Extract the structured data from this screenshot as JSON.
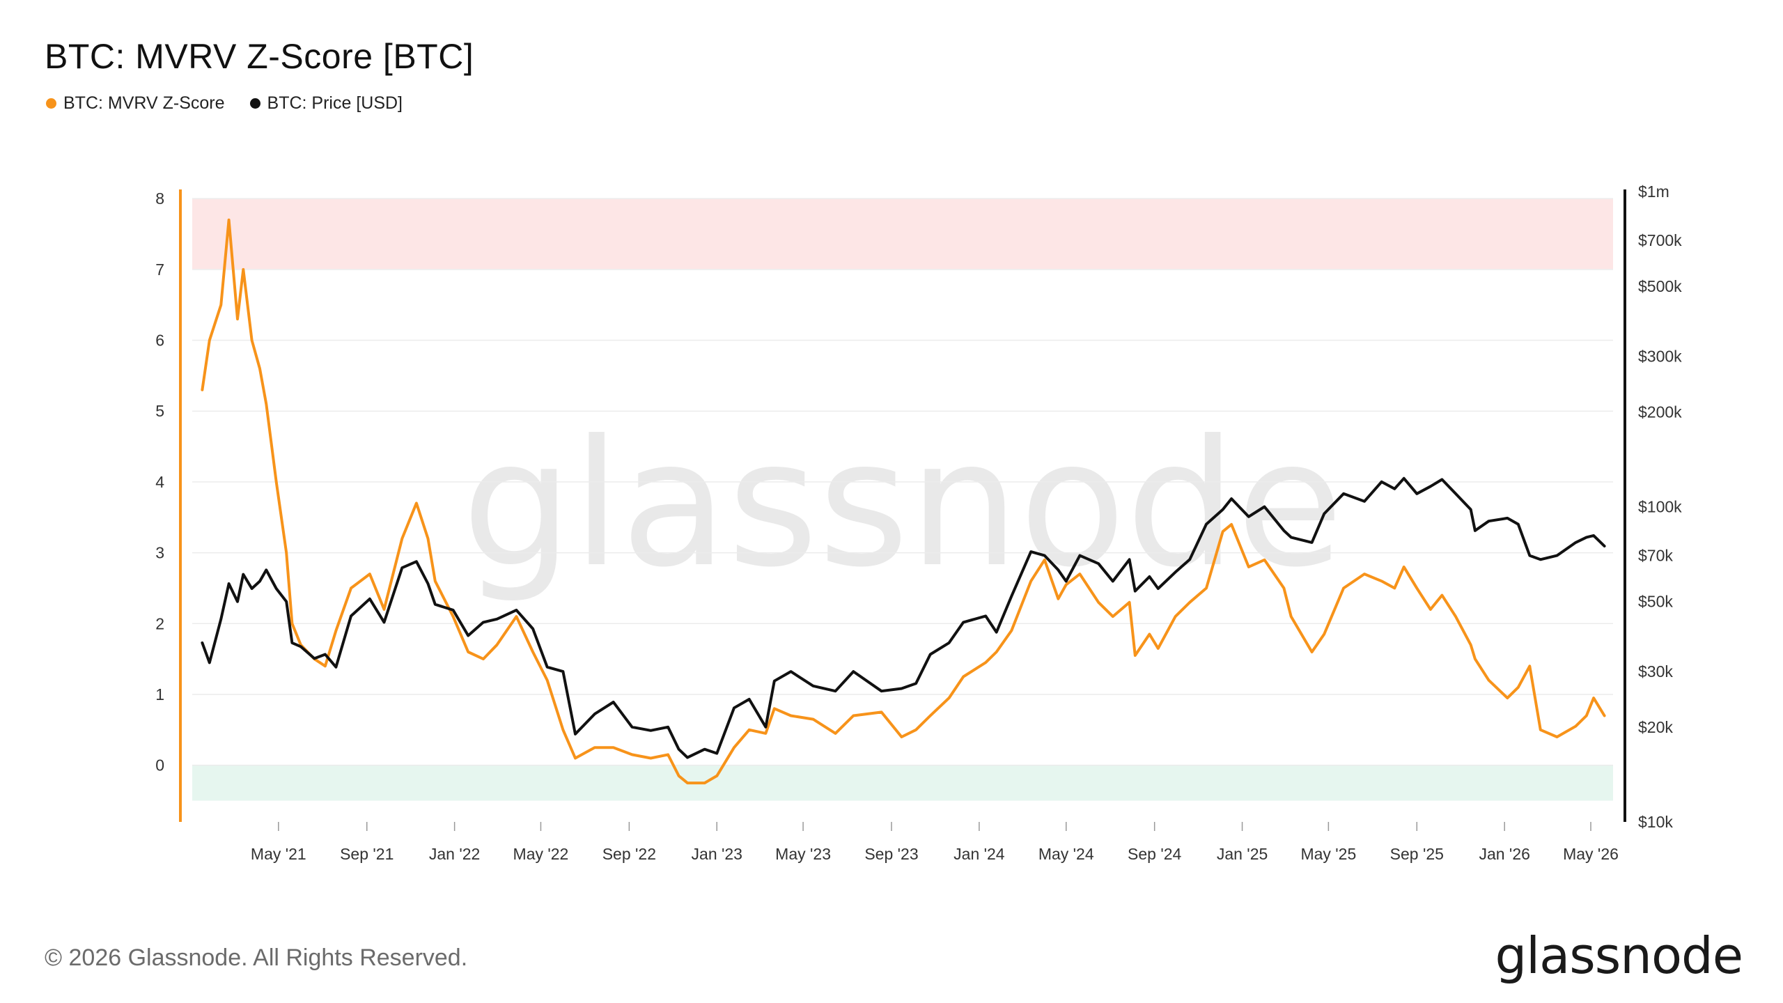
{
  "title": "BTC: MVRV Z-Score [BTC]",
  "legend": [
    {
      "label": "BTC: MVRV Z-Score",
      "color": "#f7931a"
    },
    {
      "label": "BTC: Price [USD]",
      "color": "#111111"
    }
  ],
  "footer": {
    "copyright": "© 2026 Glassnode. All Rights Reserved.",
    "logo": "glassnode"
  },
  "watermark": "glassnode",
  "chart_data": {
    "type": "line",
    "title": "BTC: MVRV Z-Score [BTC]",
    "x_ticks": [
      "May '21",
      "Sep '21",
      "Jan '22",
      "May '22",
      "Sep '22",
      "Jan '23",
      "May '23",
      "Sep '23",
      "Jan '24",
      "May '24",
      "Sep '24",
      "Jan '25",
      "May '25",
      "Sep '25",
      "Jan '26",
      "May '26"
    ],
    "x_range": [
      "2021-01-01",
      "2026-06-01"
    ],
    "y_left": {
      "ticks": [
        "8",
        "7",
        "6",
        "5",
        "4",
        "3",
        "2",
        "1",
        "0"
      ],
      "range": [
        -0.8,
        8.1
      ]
    },
    "y_right": {
      "scale": "log",
      "ticks": [
        "$1m",
        "$700k",
        "$500k",
        "$300k",
        "$200k",
        "$100k",
        "$70k",
        "$50k",
        "$30k",
        "$20k",
        "$10k"
      ],
      "range": [
        10000,
        1000000
      ]
    },
    "bands": [
      {
        "from": 7,
        "to": 8,
        "color": "#fde6e6",
        "label": ""
      },
      {
        "from": -0.5,
        "to": 0,
        "color": "#e6f6ef",
        "label": ""
      }
    ],
    "series": [
      {
        "name": "BTC: MVRV Z-Score",
        "axis": "left",
        "color": "#f7931a",
        "x": [
          "2021-01-15",
          "2021-01-25",
          "2021-02-10",
          "2021-02-21",
          "2021-03-05",
          "2021-03-13",
          "2021-03-25",
          "2021-04-05",
          "2021-04-14",
          "2021-04-28",
          "2021-05-12",
          "2021-05-20",
          "2021-06-01",
          "2021-06-20",
          "2021-07-05",
          "2021-07-20",
          "2021-08-10",
          "2021-09-05",
          "2021-09-25",
          "2021-10-20",
          "2021-11-09",
          "2021-11-25",
          "2021-12-05",
          "2021-12-30",
          "2022-01-20",
          "2022-02-10",
          "2022-03-01",
          "2022-03-28",
          "2022-04-20",
          "2022-05-10",
          "2022-06-01",
          "2022-06-18",
          "2022-07-15",
          "2022-08-10",
          "2022-09-05",
          "2022-10-01",
          "2022-10-25",
          "2022-11-09",
          "2022-11-21",
          "2022-12-15",
          "2023-01-01",
          "2023-01-25",
          "2023-02-15",
          "2023-03-10",
          "2023-03-22",
          "2023-04-14",
          "2023-05-15",
          "2023-06-15",
          "2023-07-10",
          "2023-08-18",
          "2023-09-15",
          "2023-10-05",
          "2023-10-25",
          "2023-11-20",
          "2023-12-10",
          "2024-01-10",
          "2024-01-25",
          "2024-02-15",
          "2024-03-13",
          "2024-04-01",
          "2024-04-20",
          "2024-05-01",
          "2024-05-20",
          "2024-06-15",
          "2024-07-05",
          "2024-07-28",
          "2024-08-05",
          "2024-08-25",
          "2024-09-06",
          "2024-09-30",
          "2024-10-20",
          "2024-11-12",
          "2024-12-05",
          "2024-12-17",
          "2025-01-10",
          "2025-02-01",
          "2025-02-28",
          "2025-03-10",
          "2025-04-08",
          "2025-04-25",
          "2025-05-22",
          "2025-06-20",
          "2025-07-14",
          "2025-08-01",
          "2025-08-14",
          "2025-09-01",
          "2025-09-20",
          "2025-10-06",
          "2025-10-25",
          "2025-11-15",
          "2025-11-21",
          "2025-12-10",
          "2026-01-05",
          "2026-01-20",
          "2026-02-05",
          "2026-02-20",
          "2026-03-15",
          "2026-04-10",
          "2026-04-25",
          "2026-05-05",
          "2026-05-20"
        ],
        "values": [
          5.3,
          6.0,
          6.5,
          7.7,
          6.3,
          7.0,
          6.0,
          5.6,
          5.1,
          4.0,
          3.0,
          2.0,
          1.7,
          1.5,
          1.4,
          1.9,
          2.5,
          2.7,
          2.2,
          3.2,
          3.7,
          3.2,
          2.6,
          2.1,
          1.6,
          1.5,
          1.7,
          2.1,
          1.6,
          1.2,
          0.5,
          0.1,
          0.25,
          0.25,
          0.15,
          0.1,
          0.15,
          -0.15,
          -0.25,
          -0.25,
          -0.15,
          0.25,
          0.5,
          0.45,
          0.8,
          0.7,
          0.65,
          0.45,
          0.7,
          0.75,
          0.4,
          0.5,
          0.7,
          0.95,
          1.25,
          1.45,
          1.6,
          1.9,
          2.6,
          2.9,
          2.35,
          2.55,
          2.7,
          2.3,
          2.1,
          2.3,
          1.55,
          1.85,
          1.65,
          2.1,
          2.3,
          2.5,
          3.3,
          3.4,
          2.8,
          2.9,
          2.5,
          2.1,
          1.6,
          1.85,
          2.5,
          2.7,
          2.6,
          2.5,
          2.8,
          2.5,
          2.2,
          2.4,
          2.1,
          1.7,
          1.5,
          1.2,
          0.95,
          1.1,
          1.4,
          0.5,
          0.4,
          0.55,
          0.7,
          0.95,
          0.7
        ]
      },
      {
        "name": "BTC: Price [USD]",
        "axis": "right",
        "color": "#111111",
        "x": [
          "2021-01-15",
          "2021-01-25",
          "2021-02-10",
          "2021-02-21",
          "2021-03-05",
          "2021-03-13",
          "2021-03-25",
          "2021-04-05",
          "2021-04-14",
          "2021-04-28",
          "2021-05-12",
          "2021-05-20",
          "2021-06-01",
          "2021-06-20",
          "2021-07-05",
          "2021-07-20",
          "2021-08-10",
          "2021-09-05",
          "2021-09-25",
          "2021-10-20",
          "2021-11-09",
          "2021-11-25",
          "2021-12-05",
          "2021-12-30",
          "2022-01-20",
          "2022-02-10",
          "2022-03-01",
          "2022-03-28",
          "2022-04-20",
          "2022-05-10",
          "2022-06-01",
          "2022-06-18",
          "2022-07-15",
          "2022-08-10",
          "2022-09-05",
          "2022-10-01",
          "2022-10-25",
          "2022-11-09",
          "2022-11-21",
          "2022-12-15",
          "2023-01-01",
          "2023-01-25",
          "2023-02-15",
          "2023-03-10",
          "2023-03-22",
          "2023-04-14",
          "2023-05-15",
          "2023-06-15",
          "2023-07-10",
          "2023-08-18",
          "2023-09-15",
          "2023-10-05",
          "2023-10-25",
          "2023-11-20",
          "2023-12-10",
          "2024-01-10",
          "2024-01-25",
          "2024-02-15",
          "2024-03-13",
          "2024-04-01",
          "2024-04-20",
          "2024-05-01",
          "2024-05-20",
          "2024-06-15",
          "2024-07-05",
          "2024-07-28",
          "2024-08-05",
          "2024-08-25",
          "2024-09-06",
          "2024-09-30",
          "2024-10-20",
          "2024-11-12",
          "2024-12-05",
          "2024-12-17",
          "2025-01-10",
          "2025-02-01",
          "2025-02-28",
          "2025-03-10",
          "2025-04-08",
          "2025-04-25",
          "2025-05-22",
          "2025-06-20",
          "2025-07-14",
          "2025-08-01",
          "2025-08-14",
          "2025-09-01",
          "2025-09-20",
          "2025-10-06",
          "2025-10-25",
          "2025-11-15",
          "2025-11-21",
          "2025-12-10",
          "2026-01-05",
          "2026-01-20",
          "2026-02-05",
          "2026-02-20",
          "2026-03-15",
          "2026-04-10",
          "2026-04-25",
          "2026-05-05",
          "2026-05-20"
        ],
        "values": [
          37000,
          32000,
          44000,
          57000,
          50000,
          61000,
          55000,
          58000,
          63000,
          55000,
          50000,
          37000,
          36000,
          33000,
          34000,
          31000,
          45000,
          51000,
          43000,
          64000,
          67000,
          57000,
          49000,
          47000,
          39000,
          43000,
          44000,
          47000,
          41000,
          31000,
          30000,
          19000,
          22000,
          24000,
          20000,
          19500,
          20000,
          17000,
          16000,
          17000,
          16500,
          23000,
          24500,
          20000,
          28000,
          30000,
          27000,
          26000,
          30000,
          26000,
          26500,
          27500,
          34000,
          37000,
          43000,
          45000,
          40000,
          52000,
          72000,
          70000,
          63000,
          58000,
          70000,
          66000,
          58000,
          68000,
          54000,
          60000,
          55000,
          62000,
          68000,
          88000,
          98000,
          106000,
          93000,
          100000,
          84000,
          80000,
          77000,
          95000,
          110000,
          104000,
          120000,
          114000,
          123000,
          110000,
          116000,
          122000,
          110000,
          98000,
          84000,
          90000,
          92000,
          88000,
          70000,
          68000,
          70000,
          77000,
          80000,
          81000,
          75000
        ]
      }
    ]
  }
}
